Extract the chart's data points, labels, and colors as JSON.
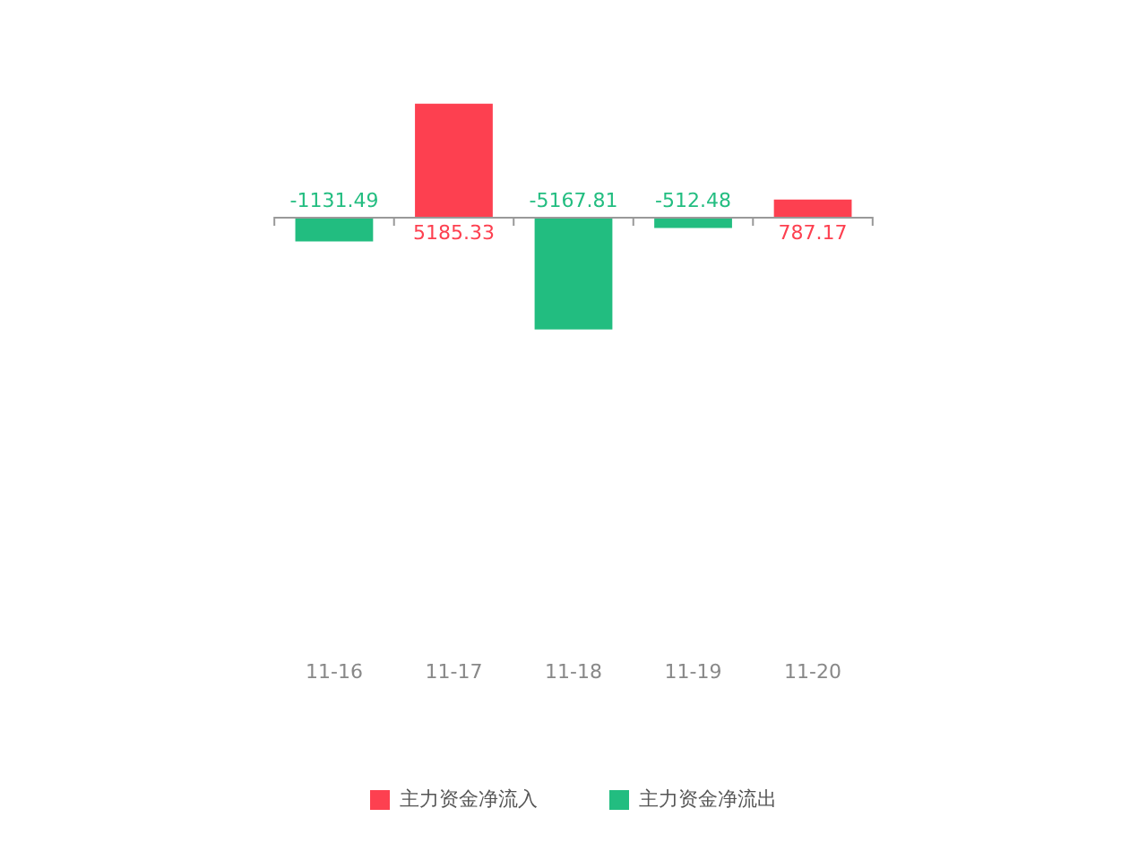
{
  "chart_data": {
    "type": "bar",
    "categories": [
      "11-16",
      "11-17",
      "11-18",
      "11-19",
      "11-20"
    ],
    "series": [
      {
        "name": "主力资金净流入",
        "color": "#fd4050",
        "values": [
          null,
          5185.33,
          null,
          null,
          787.17
        ]
      },
      {
        "name": "主力资金净流出",
        "color": "#22bd80",
        "values": [
          -1131.49,
          null,
          -5167.81,
          -512.48,
          null
        ]
      }
    ],
    "stacked": true,
    "data_labels": true,
    "legend": "bottom",
    "grid": false
  }
}
